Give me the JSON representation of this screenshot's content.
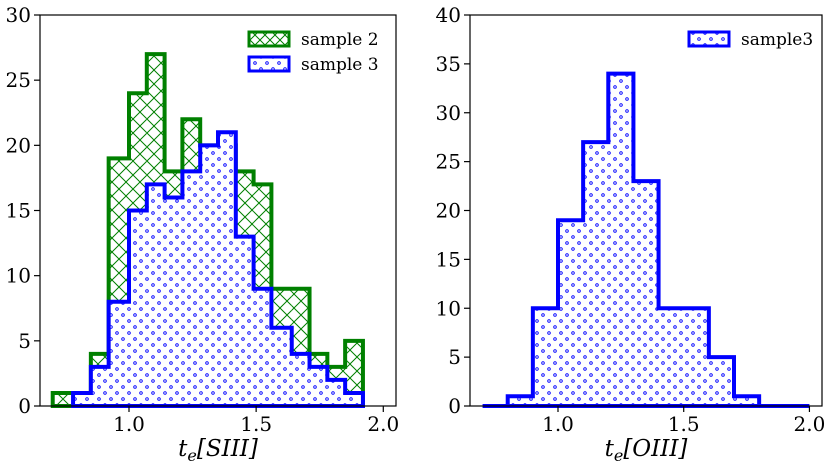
{
  "chart_data": [
    {
      "type": "histogram",
      "xlabel": "t_e[SIII]",
      "xlabel_base": "t",
      "xlabel_sub": "e",
      "xlabel_bracket": "[SIII]",
      "ylabel": "",
      "xlim": [
        0.65,
        2.05
      ],
      "ylim": [
        0,
        30
      ],
      "xticks": [
        1.0,
        1.5,
        2.0
      ],
      "xtick_labels": [
        "1.0",
        "1.5",
        "2.0"
      ],
      "yticks": [
        0,
        5,
        10,
        15,
        20,
        25,
        30
      ],
      "ytick_labels": [
        "0",
        "5",
        "10",
        "15",
        "20",
        "25",
        "30"
      ],
      "legend_position": "top-right",
      "series": [
        {
          "name": "sample 2",
          "color": "#008000",
          "hatch": "crosshatch",
          "bin_edges": [
            0.7,
            0.78,
            0.85,
            0.92,
            1.0,
            1.07,
            1.14,
            1.21,
            1.28,
            1.35,
            1.42,
            1.49,
            1.56,
            1.64,
            1.71,
            1.78,
            1.85,
            1.92
          ],
          "counts": [
            1,
            1,
            4,
            19,
            24,
            27,
            18,
            22,
            20,
            20,
            18,
            17,
            9,
            9,
            4,
            3,
            5
          ]
        },
        {
          "name": "sample 3",
          "color": "#0000ff",
          "hatch": "dots",
          "bin_edges": [
            0.78,
            0.85,
            0.92,
            1.0,
            1.07,
            1.14,
            1.21,
            1.28,
            1.35,
            1.42,
            1.49,
            1.56,
            1.64,
            1.71,
            1.78,
            1.85,
            1.92
          ],
          "counts": [
            1,
            3,
            8,
            15,
            17,
            16,
            18,
            20,
            21,
            13,
            9,
            6,
            4,
            3,
            2,
            1
          ]
        }
      ]
    },
    {
      "type": "histogram",
      "xlabel": "t_e[OIII]",
      "xlabel_base": "t",
      "xlabel_sub": "e",
      "xlabel_bracket": "[OIII]",
      "ylabel": "",
      "xlim": [
        0.65,
        2.05
      ],
      "ylim": [
        0,
        40
      ],
      "xticks": [
        1.0,
        1.5,
        2.0
      ],
      "xtick_labels": [
        "1.0",
        "1.5",
        "2.0"
      ],
      "yticks": [
        0,
        5,
        10,
        15,
        20,
        25,
        30,
        35,
        40
      ],
      "ytick_labels": [
        "0",
        "5",
        "10",
        "15",
        "20",
        "25",
        "30",
        "35",
        "40"
      ],
      "legend_position": "top-right",
      "series": [
        {
          "name": "sample3",
          "color": "#0000ff",
          "hatch": "dots",
          "bin_edges": [
            0.7,
            0.8,
            0.9,
            1.0,
            1.1,
            1.2,
            1.3,
            1.4,
            1.5,
            1.6,
            1.7,
            1.8,
            1.9,
            2.0
          ],
          "counts": [
            0,
            1,
            10,
            19,
            27,
            34,
            23,
            10,
            10,
            5,
            1,
            0,
            0
          ]
        }
      ]
    }
  ]
}
